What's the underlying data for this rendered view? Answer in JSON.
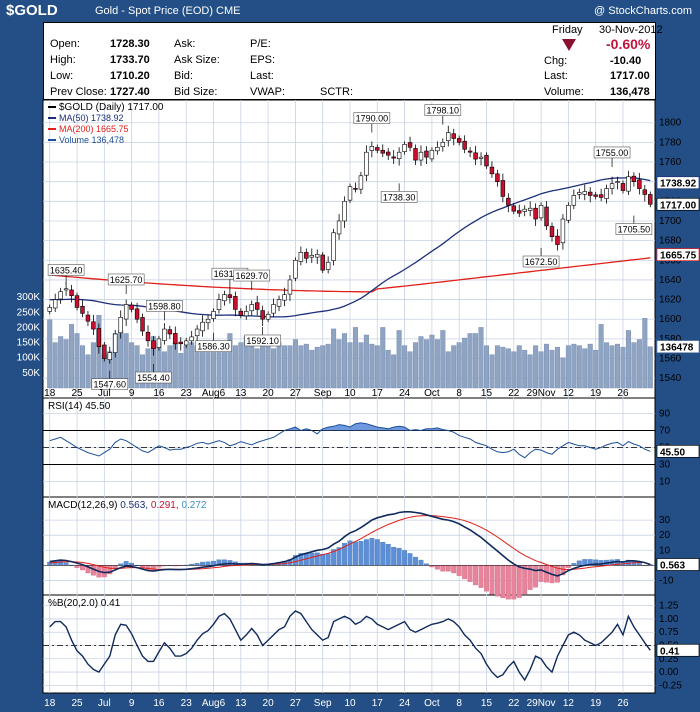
{
  "header": {
    "symbol": "$GOLD",
    "description": "Gold - Spot Price (EOD)",
    "exchange": "CME",
    "credit": "@ StockCharts.com"
  },
  "quote": {
    "day": "Friday",
    "date": "30-Nov-2012",
    "change_pct": "-0.60%",
    "open_label": "Open:",
    "open": "1728.30",
    "high_label": "High:",
    "high": "1733.70",
    "low_label": "Low:",
    "low": "1710.20",
    "prev_close_label": "Prev Close:",
    "prev_close": "1727.40",
    "ask_label": "Ask:",
    "ask_size_label": "Ask Size:",
    "bid_label": "Bid:",
    "bid_size_label": "Bid Size:",
    "pe_label": "P/E:",
    "eps_label": "EPS:",
    "last_label2": "Last:",
    "vwap_label": "VWAP:",
    "sctr_label": "SCTR:",
    "chg_label": "Chg:",
    "chg": "-10.40",
    "last_label": "Last:",
    "last": "1717.00",
    "volume_label": "Volume:",
    "volume": "136,478"
  },
  "colors": {
    "background": "#234f86",
    "up_candle": "#ffffff",
    "down_candle": "#c8102e",
    "ma50": "#1c2f7a",
    "ma200": "#e0201a",
    "volume": "#8fa3c3",
    "rsi_fill": "#4a7fd6",
    "macd_line": "#102a5c",
    "macd_signal": "#e0201a",
    "hist_pos": "#5d8fd6",
    "hist_neg": "#e7839a"
  },
  "chart_data": [
    {
      "type": "candlestick",
      "legend": {
        "price": "$GOLD (Daily) 1717.00",
        "ma50": "MA(50) 1738.92",
        "ma200": "MA(200) 1665.75",
        "volume": "Volume 136,478"
      },
      "ylim": [
        1530,
        1815
      ],
      "y_ticks": [
        "1800",
        "1780",
        "1760",
        "1740",
        "1720",
        "1700",
        "1680",
        "1660",
        "1640",
        "1620",
        "1600",
        "1580",
        "1560",
        "1540"
      ],
      "volume_ticks": [
        "300K",
        "250K",
        "200K",
        "150K",
        "100K",
        "50K"
      ],
      "volume_ylim": [
        0,
        340000
      ],
      "x_labels": [
        "18",
        "25",
        "Jul",
        "9",
        "16",
        "23",
        "Aug6",
        "13",
        "20",
        "27",
        "Sep",
        "10",
        "17",
        "24",
        "Oct",
        "8",
        "15",
        "22",
        "29Nov",
        "12",
        "19",
        "26"
      ],
      "price_tags": {
        "ma50": "1738.92",
        "last": "1717.00",
        "ma200": "1665.75",
        "volume": "136478"
      },
      "annotations": [
        {
          "label": "1635.40",
          "value": 1635.4,
          "bar": 3
        },
        {
          "label": "1547.60",
          "value": 1547.6,
          "bar": 11
        },
        {
          "label": "1625.70",
          "value": 1625.7,
          "bar": 14
        },
        {
          "label": "1554.40",
          "value": 1554.4,
          "bar": 19
        },
        {
          "label": "1598.80",
          "value": 1598.8,
          "bar": 21
        },
        {
          "label": "1586.30",
          "value": 1586.3,
          "bar": 30
        },
        {
          "label": "1631.60",
          "value": 1631.6,
          "bar": 33
        },
        {
          "label": "1629.70",
          "value": 1629.7,
          "bar": 37
        },
        {
          "label": "1592.10",
          "value": 1592.1,
          "bar": 39
        },
        {
          "label": "1790.00",
          "value": 1790.0,
          "bar": 59
        },
        {
          "label": "1738.30",
          "value": 1738.3,
          "bar": 64
        },
        {
          "label": "1798.10",
          "value": 1798.1,
          "bar": 72
        },
        {
          "label": "1672.50",
          "value": 1672.5,
          "bar": 90
        },
        {
          "label": "1755.00",
          "value": 1755.0,
          "bar": 103
        },
        {
          "label": "1705.50",
          "value": 1705.5,
          "bar": 107
        }
      ],
      "closes": [
        1612,
        1620,
        1628,
        1631,
        1624,
        1612,
        1606,
        1598,
        1590,
        1572,
        1560,
        1566,
        1585,
        1602,
        1615,
        1610,
        1600,
        1588,
        1578,
        1570,
        1580,
        1590,
        1585,
        1575,
        1575,
        1578,
        1582,
        1590,
        1597,
        1600,
        1608,
        1620,
        1625,
        1622,
        1610,
        1604,
        1608,
        1615,
        1610,
        1600,
        1605,
        1615,
        1620,
        1625,
        1640,
        1660,
        1668,
        1662,
        1665,
        1666,
        1650,
        1658,
        1688,
        1700,
        1720,
        1735,
        1733,
        1746,
        1770,
        1776,
        1772,
        1769,
        1767,
        1764,
        1770,
        1778,
        1775,
        1762,
        1770,
        1765,
        1772,
        1775,
        1780,
        1790,
        1784,
        1780,
        1773,
        1770,
        1763,
        1765,
        1756,
        1748,
        1740,
        1725,
        1716,
        1710,
        1708,
        1712,
        1713,
        1702,
        1716,
        1695,
        1684,
        1676,
        1702,
        1716,
        1726,
        1729,
        1730,
        1726,
        1725,
        1724,
        1733,
        1738,
        1740,
        1731,
        1745,
        1740,
        1733,
        1727,
        1717
      ],
      "volume": [
        225000,
        150000,
        170000,
        160000,
        210000,
        180000,
        140000,
        110000,
        150000,
        240000,
        110000,
        120000,
        180000,
        190000,
        180000,
        150000,
        140000,
        110000,
        130000,
        170000,
        150000,
        120000,
        140000,
        150000,
        115000,
        140000,
        150000,
        140000,
        130000,
        135000,
        140000,
        145000,
        130000,
        180000,
        140000,
        150000,
        170000,
        140000,
        130000,
        150000,
        140000,
        130000,
        150000,
        140000,
        140000,
        160000,
        140000,
        145000,
        125000,
        135000,
        140000,
        145000,
        195000,
        160000,
        180000,
        150000,
        200000,
        150000,
        175000,
        145000,
        140000,
        200000,
        125000,
        110000,
        190000,
        140000,
        120000,
        150000,
        170000,
        160000,
        175000,
        160000,
        190000,
        120000,
        140000,
        150000,
        165000,
        180000,
        180000,
        200000,
        140000,
        110000,
        140000,
        135000,
        130000,
        120000,
        140000,
        125000,
        110000,
        140000,
        120000,
        145000,
        125000,
        135000,
        100000,
        140000,
        145000,
        140000,
        130000,
        145000,
        125000,
        210000,
        150000,
        140000,
        145000,
        135000,
        190000,
        150000,
        160000,
        230000,
        136478
      ]
    },
    {
      "type": "line",
      "name": "RSI(14)",
      "legend": "RSI(14) 45.50",
      "ylim": [
        0,
        100
      ],
      "y_ticks": [
        "90",
        "70",
        "50",
        "30",
        "10"
      ],
      "overbought": 70,
      "oversold": 30,
      "midline": 50,
      "last_tag": "45.50",
      "values": [
        58,
        60,
        62,
        58,
        54,
        50,
        47,
        44,
        42,
        40,
        44,
        48,
        56,
        60,
        58,
        54,
        50,
        46,
        44,
        48,
        52,
        50,
        47,
        48,
        48,
        50,
        52,
        55,
        56,
        54,
        56,
        58,
        56,
        52,
        54,
        57,
        55,
        53,
        56,
        58,
        60,
        62,
        66,
        70,
        72,
        74,
        70,
        72,
        70,
        66,
        72,
        74,
        75,
        77,
        76,
        74,
        78,
        79,
        78,
        76,
        74,
        73,
        72,
        74,
        75,
        74,
        70,
        71,
        70,
        72,
        72,
        73,
        71,
        70,
        68,
        64,
        62,
        60,
        56,
        54,
        52,
        48,
        45,
        44,
        45,
        48,
        42,
        38,
        44,
        48,
        47,
        44,
        42,
        48,
        52,
        56,
        54,
        52,
        52,
        50,
        48,
        50,
        53,
        55,
        56,
        52,
        57,
        54,
        52,
        48,
        45.5
      ]
    },
    {
      "type": "line",
      "name": "MACD(12,26,9)",
      "legend": {
        "label": "MACD(12,26,9)",
        "macd": "0.563",
        "signal": "0.291",
        "histogram": "0.272"
      },
      "ylim": [
        -15,
        40
      ],
      "y_ticks": [
        "30",
        "20",
        "10",
        "0",
        "-10"
      ],
      "last_tag": "0.563",
      "macd": [
        2.5,
        3.0,
        3.5,
        3.2,
        2.5,
        1.5,
        0.5,
        -1.0,
        -2.5,
        -4.0,
        -4.8,
        -4.5,
        -3.0,
        -1.5,
        -0.5,
        -0.8,
        -1.5,
        -2.5,
        -3.5,
        -3.8,
        -3.2,
        -2.8,
        -2.6,
        -2.8,
        -2.8,
        -2.6,
        -2.2,
        -1.8,
        -1.2,
        -0.8,
        -0.3,
        0.5,
        1.0,
        1.2,
        1.0,
        0.8,
        1.0,
        1.2,
        1.0,
        0.6,
        0.7,
        1.2,
        1.8,
        2.5,
        3.5,
        5.5,
        7.0,
        8.0,
        9.0,
        10.0,
        10.5,
        11.5,
        14.0,
        16.0,
        19.0,
        21.5,
        23.0,
        25.0,
        27.5,
        30.0,
        31.5,
        32.5,
        33.5,
        34.0,
        35.0,
        35.5,
        35.5,
        35.0,
        34.5,
        33.5,
        32.5,
        31.5,
        30.5,
        30.0,
        29.0,
        27.5,
        25.5,
        23.5,
        21.0,
        18.5,
        15.5,
        12.5,
        9.5,
        6.5,
        3.5,
        1.0,
        -1.0,
        -2.0,
        -2.5,
        -3.5,
        -3.0,
        -4.5,
        -6.0,
        -7.0,
        -5.5,
        -3.5,
        -2.0,
        -0.8,
        0.0,
        0.5,
        0.8,
        1.0,
        1.5,
        2.0,
        2.5,
        2.2,
        3.0,
        3.0,
        2.5,
        1.8,
        0.563
      ],
      "signal": [
        1.5,
        1.9,
        2.2,
        2.4,
        2.4,
        2.2,
        1.9,
        1.3,
        0.5,
        -0.4,
        -1.3,
        -1.9,
        -2.1,
        -2.0,
        -1.7,
        -1.5,
        -1.5,
        -1.7,
        -2.1,
        -2.4,
        -2.6,
        -2.6,
        -2.6,
        -2.6,
        -2.7,
        -2.7,
        -2.6,
        -2.4,
        -2.2,
        -1.9,
        -1.6,
        -1.2,
        -0.7,
        -0.3,
        -0.1,
        0.1,
        0.3,
        0.5,
        0.6,
        0.6,
        0.6,
        0.7,
        0.9,
        1.2,
        1.7,
        2.5,
        3.4,
        4.3,
        5.3,
        6.2,
        7.1,
        8.0,
        9.2,
        10.6,
        12.3,
        14.1,
        15.9,
        17.7,
        19.7,
        21.8,
        23.7,
        25.5,
        27.1,
        28.5,
        29.8,
        31.0,
        31.9,
        32.5,
        32.9,
        33.0,
        33.0,
        32.7,
        32.3,
        31.8,
        31.3,
        30.6,
        29.6,
        28.4,
        26.9,
        25.2,
        23.3,
        21.2,
        18.8,
        16.3,
        13.7,
        11.2,
        8.7,
        6.6,
        4.8,
        3.1,
        1.9,
        0.6,
        -0.7,
        -1.9,
        -2.6,
        -2.8,
        -2.6,
        -2.2,
        -1.8,
        -1.3,
        -0.9,
        -0.5,
        -0.1,
        0.3,
        0.7,
        1.0,
        1.4,
        1.7,
        1.9,
        1.9,
        0.291
      ]
    },
    {
      "type": "line",
      "name": "%B(20,2.0)",
      "legend": "%B(20,2.0) 0.41",
      "ylim": [
        -0.3,
        1.3
      ],
      "y_ticks": [
        "1.25",
        "1.00",
        "0.75",
        "0.50",
        "0.25",
        "0.00",
        "-0.25"
      ],
      "last_tag": "0.41",
      "values": [
        0.85,
        0.95,
        0.95,
        0.85,
        0.6,
        0.4,
        0.3,
        0.15,
        0.05,
        0.0,
        0.15,
        0.3,
        0.7,
        0.9,
        0.88,
        0.72,
        0.5,
        0.3,
        0.2,
        0.2,
        0.38,
        0.55,
        0.45,
        0.3,
        0.3,
        0.35,
        0.45,
        0.6,
        0.72,
        0.78,
        0.9,
        1.05,
        1.1,
        1.0,
        0.8,
        0.6,
        0.7,
        0.82,
        0.7,
        0.5,
        0.6,
        0.7,
        0.8,
        0.85,
        1.05,
        1.15,
        1.1,
        0.95,
        0.8,
        0.7,
        0.6,
        0.65,
        0.95,
        1.0,
        1.05,
        1.0,
        0.9,
        0.95,
        1.05,
        1.0,
        0.9,
        0.85,
        0.8,
        0.85,
        0.9,
        0.95,
        0.8,
        0.75,
        0.8,
        0.85,
        0.9,
        0.92,
        0.95,
        1.0,
        0.95,
        0.85,
        0.7,
        0.6,
        0.45,
        0.35,
        0.15,
        0.0,
        -0.1,
        -0.05,
        0.1,
        0.2,
        0.0,
        -0.15,
        0.05,
        0.3,
        0.25,
        0.1,
        0.0,
        0.3,
        0.5,
        0.7,
        0.75,
        0.7,
        0.6,
        0.55,
        0.5,
        0.55,
        0.65,
        0.75,
        0.9,
        0.7,
        1.05,
        0.85,
        0.7,
        0.55,
        0.41
      ]
    }
  ]
}
